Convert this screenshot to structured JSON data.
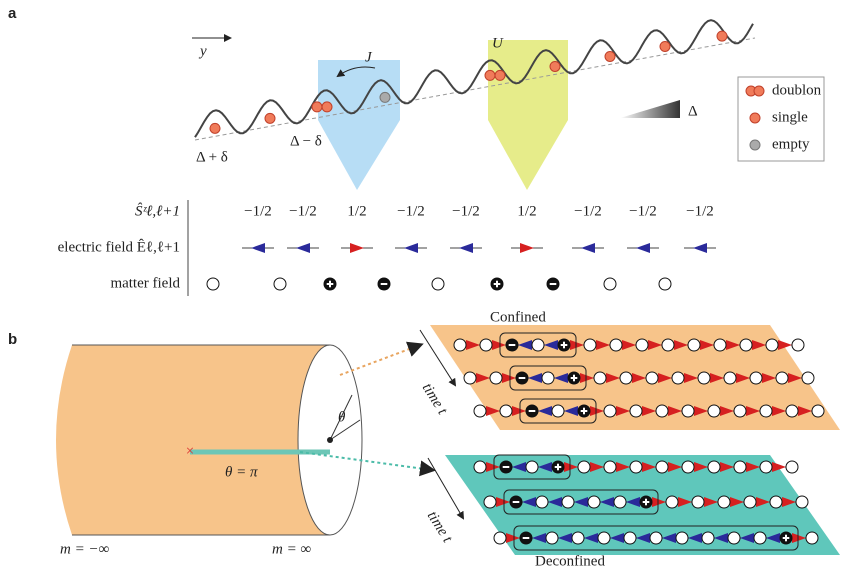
{
  "panel_a": {
    "label": "a",
    "axis_label": "y",
    "hopping": "J",
    "interaction": "U",
    "tilt": "Δ",
    "offset_plus": "Δ + δ",
    "offset_minus": "Δ − δ",
    "legend": [
      "doublon",
      "single",
      "empty"
    ],
    "spin_label": "Ŝᶻℓ,ℓ+1",
    "spin_values": [
      "−1/2",
      "−1/2",
      "1/2",
      "−1/2",
      "−1/2",
      "1/2",
      "−1/2",
      "−1/2",
      "−1/2"
    ],
    "electric_label": "electric field Êℓ,ℓ+1",
    "matter_label": "matter field"
  },
  "panel_b": {
    "label": "b",
    "theta": "θ",
    "theta_pi": "θ = π",
    "m_minus": "m = −∞",
    "m_plus": "m = ∞",
    "confined": "Confined",
    "deconfined": "Deconfined",
    "time_top": "time t",
    "time_bottom": "time t"
  }
}
